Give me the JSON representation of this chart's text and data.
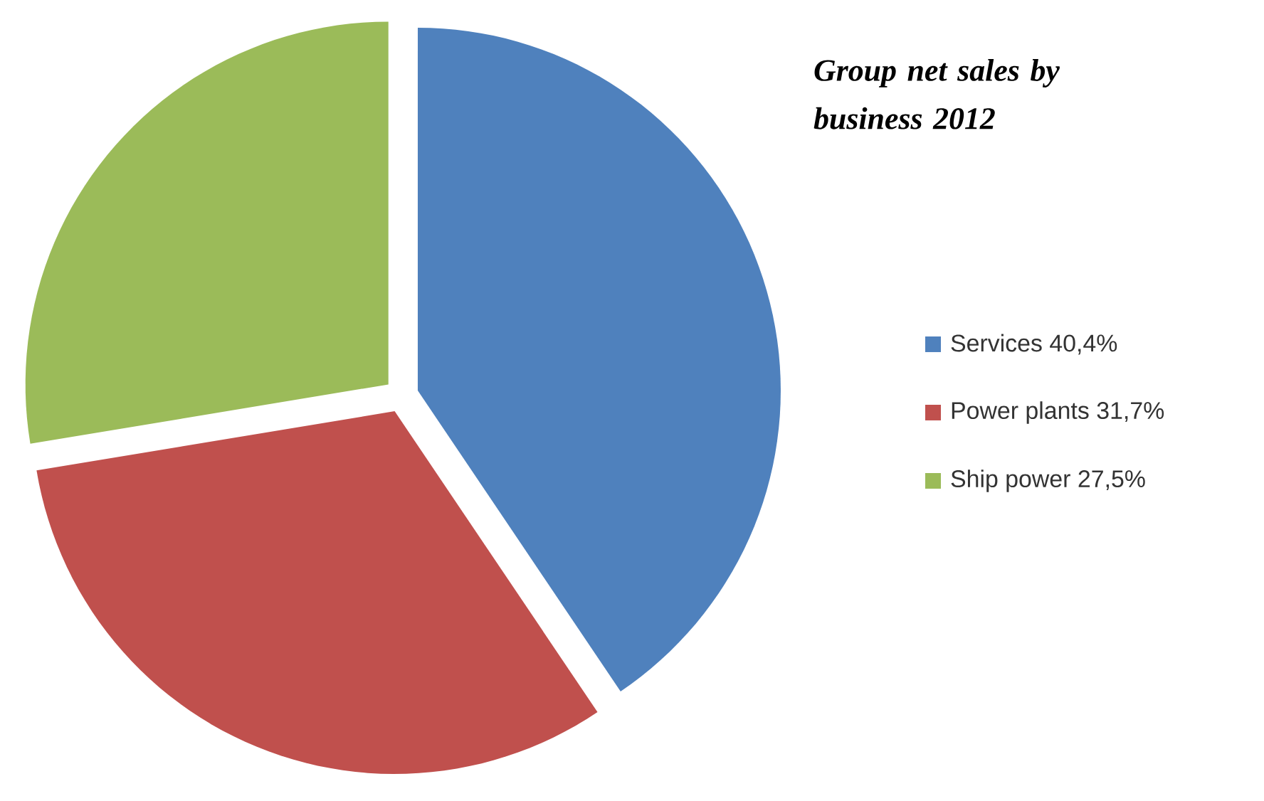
{
  "chart_data": {
    "type": "pie",
    "title": "Group net sales by business 2012",
    "categories": [
      "Services",
      "Power plants",
      "Ship power"
    ],
    "values": [
      40.4,
      31.7,
      27.5
    ],
    "value_labels": [
      "40,4%",
      "31,7%",
      "27,5%"
    ],
    "colors": [
      "#4f81bd",
      "#c0504d",
      "#9bbb59"
    ],
    "legend": "right"
  }
}
